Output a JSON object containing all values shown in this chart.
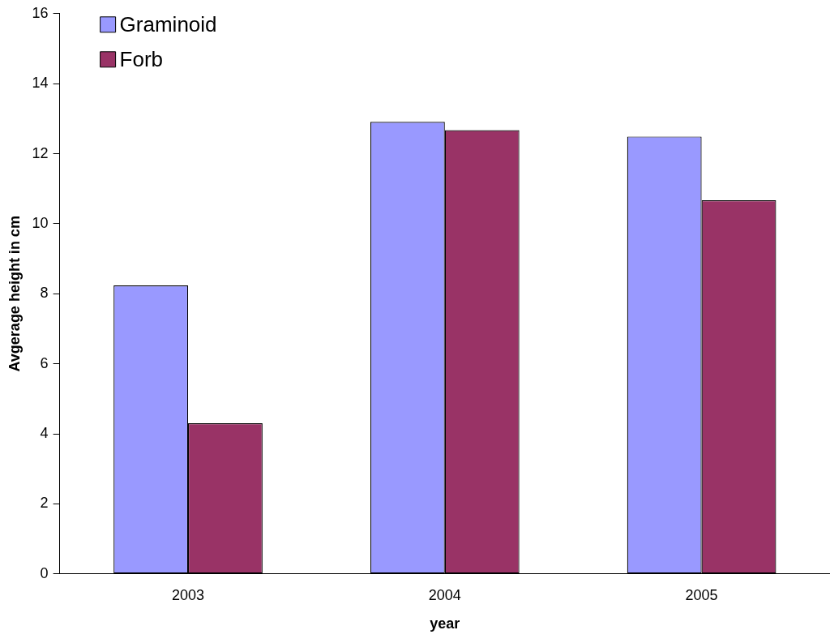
{
  "chart_data": {
    "type": "bar",
    "xlabel": "year",
    "ylabel": "Avgerage height in cm",
    "categories": [
      "2003",
      "2004",
      "2005"
    ],
    "series": [
      {
        "name": "Graminoid",
        "color": "#9999ff",
        "values": [
          8.24,
          12.91,
          12.49
        ]
      },
      {
        "name": "Forb",
        "color": "#993366",
        "values": [
          4.3,
          12.67,
          10.67
        ]
      }
    ],
    "ylim": [
      0,
      16
    ],
    "yticks": [
      0,
      2,
      4,
      6,
      8,
      10,
      12,
      14,
      16
    ],
    "grid": false,
    "legend": "top left"
  }
}
